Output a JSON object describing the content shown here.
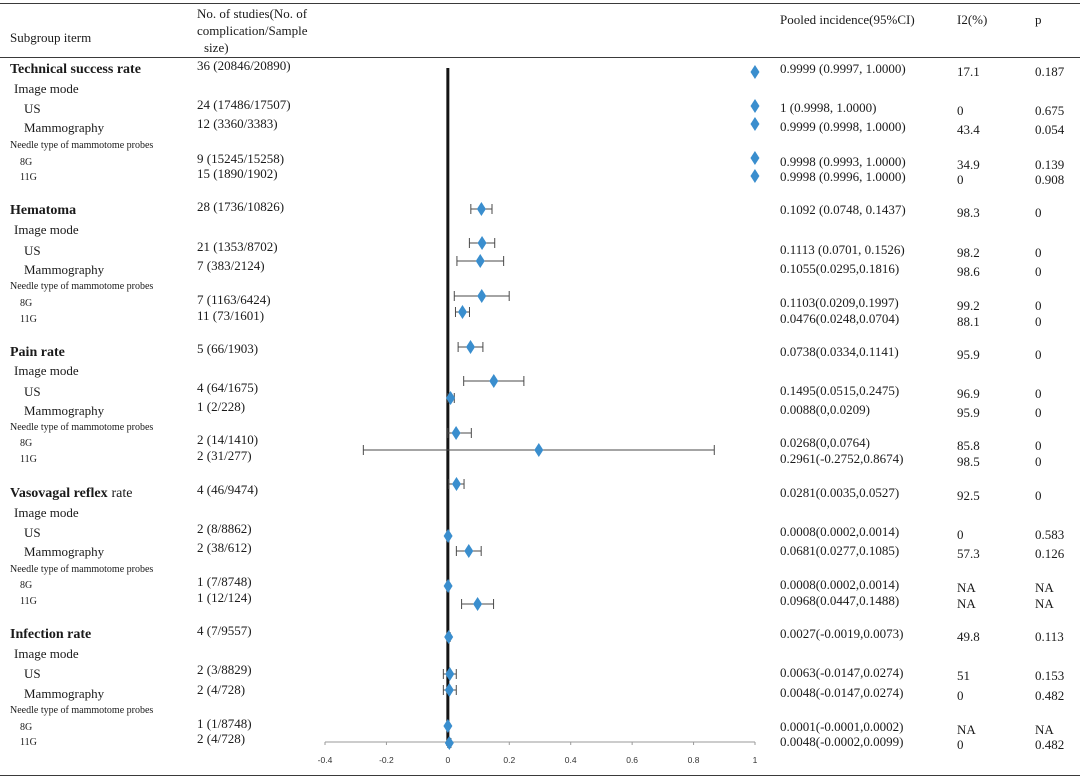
{
  "header": {
    "subgroup": "Subgroup iterm",
    "studies_line1": "No. of studies(No. of",
    "studies_line2": "complication/Sample",
    "studies_line3": "size)",
    "pooled": "Pooled incidence(95%CI)",
    "i2": "I2(%)",
    "p": "p"
  },
  "colors": {
    "diamond": "#3a8ece",
    "ci": "#4a4a4a",
    "reference": "#141414",
    "axis": "#9a9a9a",
    "rule": "#3a3a3a"
  },
  "chart_data": {
    "type": "scatter",
    "xlim": [
      -0.4,
      1
    ],
    "x_ticks": [
      "-0.4",
      "-0.2",
      "0",
      "0.2",
      "0.4",
      "0.6",
      "0.8",
      "1"
    ],
    "reference_line": 0,
    "groups": [
      {
        "label": "Technical success rate",
        "studies": "36 (20846/20890)",
        "estimate": 0.9999,
        "ci_low": 0.9997,
        "ci_high": 1.0,
        "pooled": "0.9999 (0.9997, 1.0000)",
        "i2": "17.1",
        "p": "0.187",
        "image_mode": {
          "label": "Image mode",
          "rows": [
            {
              "label": "US",
              "studies": "24 (17486/17507)",
              "estimate": 1.0,
              "ci_low": 0.9998,
              "ci_high": 1.0,
              "pooled": "1 (0.9998, 1.0000)",
              "i2": "0",
              "p": "0.675"
            },
            {
              "label": "Mammography",
              "studies": "12 (3360/3383)",
              "estimate": 0.9999,
              "ci_low": 0.9998,
              "ci_high": 1.0,
              "pooled": "0.9999 (0.9998, 1.0000)",
              "i2": "43.4",
              "p": "0.054"
            }
          ]
        },
        "needle_type": {
          "label": "Needle type of mammotome probes",
          "rows": [
            {
              "label": "8G",
              "studies": "9 (15245/15258)",
              "estimate": 0.9998,
              "ci_low": 0.9993,
              "ci_high": 1.0,
              "pooled": "0.9998 (0.9993, 1.0000)",
              "i2": "34.9",
              "p": "0.139"
            },
            {
              "label": "11G",
              "studies": "15 (1890/1902)",
              "estimate": 0.9998,
              "ci_low": 0.9996,
              "ci_high": 1.0,
              "pooled": "0.9998 (0.9996, 1.0000)",
              "i2": "0",
              "p": "0.908"
            }
          ]
        }
      },
      {
        "label": "Hematoma",
        "studies": "28 (1736/10826)",
        "estimate": 0.1092,
        "ci_low": 0.0748,
        "ci_high": 0.1437,
        "pooled": "0.1092 (0.0748, 0.1437)",
        "i2": "98.3",
        "p": "0",
        "image_mode": {
          "label": "Image mode",
          "rows": [
            {
              "label": "US",
              "studies": "21 (1353/8702)",
              "estimate": 0.1113,
              "ci_low": 0.0701,
              "ci_high": 0.1526,
              "pooled": "0.1113 (0.0701, 0.1526)",
              "i2": "98.2",
              "p": "0"
            },
            {
              "label": "Mammography",
              "studies": "7 (383/2124)",
              "estimate": 0.1055,
              "ci_low": 0.0295,
              "ci_high": 0.1816,
              "pooled": "0.1055(0.0295,0.1816)",
              "i2": "98.6",
              "p": "0"
            }
          ]
        },
        "needle_type": {
          "label": "Needle type of mammotome probes",
          "rows": [
            {
              "label": "8G",
              "studies": "7 (1163/6424)",
              "estimate": 0.1103,
              "ci_low": 0.0209,
              "ci_high": 0.1997,
              "pooled": "0.1103(0.0209,0.1997)",
              "i2": "99.2",
              "p": "0"
            },
            {
              "label": "11G",
              "studies": "11 (73/1601)",
              "estimate": 0.0476,
              "ci_low": 0.0248,
              "ci_high": 0.0704,
              "pooled": "0.0476(0.0248,0.0704)",
              "i2": "88.1",
              "p": "0"
            }
          ]
        }
      },
      {
        "label": "Pain rate",
        "studies": "5 (66/1903)",
        "estimate": 0.0738,
        "ci_low": 0.0334,
        "ci_high": 0.1141,
        "pooled": "0.0738(0.0334,0.1141)",
        "i2": "95.9",
        "p": "0",
        "image_mode": {
          "label": "Image mode",
          "rows": [
            {
              "label": "US",
              "studies": "4 (64/1675)",
              "estimate": 0.1495,
              "ci_low": 0.0515,
              "ci_high": 0.2475,
              "pooled": "0.1495(0.0515,0.2475)",
              "i2": "96.9",
              "p": "0"
            },
            {
              "label": "Mammography",
              "studies": "1 (2/228)",
              "estimate": 0.0088,
              "ci_low": 0,
              "ci_high": 0.0209,
              "pooled": "0.0088(0,0.0209)",
              "i2": "95.9",
              "p": "0"
            }
          ]
        },
        "needle_type": {
          "label": "Needle type of mammotome probes",
          "rows": [
            {
              "label": "8G",
              "studies": "2 (14/1410)",
              "estimate": 0.0268,
              "ci_low": 0,
              "ci_high": 0.0764,
              "pooled": "0.0268(0,0.0764)",
              "i2": "85.8",
              "p": "0"
            },
            {
              "label": "11G",
              "studies": "2 (31/277)",
              "estimate": 0.2961,
              "ci_low": -0.2752,
              "ci_high": 0.8674,
              "pooled": "0.2961(-0.2752,0.8674)",
              "i2": "98.5",
              "p": "0"
            }
          ]
        }
      },
      {
        "label": "Vasovagal reflex",
        "label_rest": "rate",
        "studies": "4 (46/9474)",
        "estimate": 0.0281,
        "ci_low": 0.0035,
        "ci_high": 0.0527,
        "pooled": "0.0281(0.0035,0.0527)",
        "i2": "92.5",
        "p": "0",
        "image_mode": {
          "label": "Image mode",
          "rows": [
            {
              "label": "US",
              "studies": "2 (8/8862)",
              "estimate": 0.0008,
              "ci_low": 0.0002,
              "ci_high": 0.0014,
              "pooled": "0.0008(0.0002,0.0014)",
              "i2": "0",
              "p": "0.583"
            },
            {
              "label": "Mammography",
              "studies": "2 (38/612)",
              "estimate": 0.0681,
              "ci_low": 0.0277,
              "ci_high": 0.1085,
              "pooled": "0.0681(0.0277,0.1085)",
              "i2": "57.3",
              "p": "0.126"
            }
          ]
        },
        "needle_type": {
          "label": "Needle type of mammotome probes",
          "rows": [
            {
              "label": "8G",
              "studies": "1 (7/8748)",
              "estimate": 0.0008,
              "ci_low": 0.0002,
              "ci_high": 0.0014,
              "pooled": "0.0008(0.0002,0.0014)",
              "i2": "NA",
              "p": "NA"
            },
            {
              "label": "11G",
              "studies": "1 (12/124)",
              "estimate": 0.0968,
              "ci_low": 0.0447,
              "ci_high": 0.1488,
              "pooled": "0.0968(0.0447,0.1488)",
              "i2": "NA",
              "p": "NA"
            }
          ]
        }
      },
      {
        "label": "Infection rate",
        "studies": "4 (7/9557)",
        "estimate": 0.0027,
        "ci_low": -0.0019,
        "ci_high": 0.0073,
        "pooled": "0.0027(-0.0019,0.0073)",
        "i2": "49.8",
        "p": "0.113",
        "image_mode": {
          "label": "Image mode",
          "rows": [
            {
              "label": "US",
              "studies": "2 (3/8829)",
              "estimate": 0.0063,
              "ci_low": -0.0147,
              "ci_high": 0.0274,
              "pooled": "0.0063(-0.0147,0.0274)",
              "i2": "51",
              "p": "0.153"
            },
            {
              "label": "Mammography",
              "studies": "2 (4/728)",
              "estimate": 0.0048,
              "ci_low": -0.0147,
              "ci_high": 0.0274,
              "pooled": "0.0048(-0.0147,0.0274)",
              "i2": "0",
              "p": "0.482"
            }
          ]
        },
        "needle_type": {
          "label": "Needle type of mammotome probes",
          "rows": [
            {
              "label": "8G",
              "studies": "1 (1/8748)",
              "estimate": 0.0001,
              "ci_low": -0.0001,
              "ci_high": 0.0002,
              "pooled": "0.0001(-0.0001,0.0002)",
              "i2": "NA",
              "p": "NA"
            },
            {
              "label": "11G",
              "studies": "2 (4/728)",
              "estimate": 0.0048,
              "ci_low": -0.0002,
              "ci_high": 0.0099,
              "pooled": "0.0048(-0.0002,0.0099)",
              "i2": "0",
              "p": "0.482"
            }
          ]
        }
      }
    ]
  }
}
